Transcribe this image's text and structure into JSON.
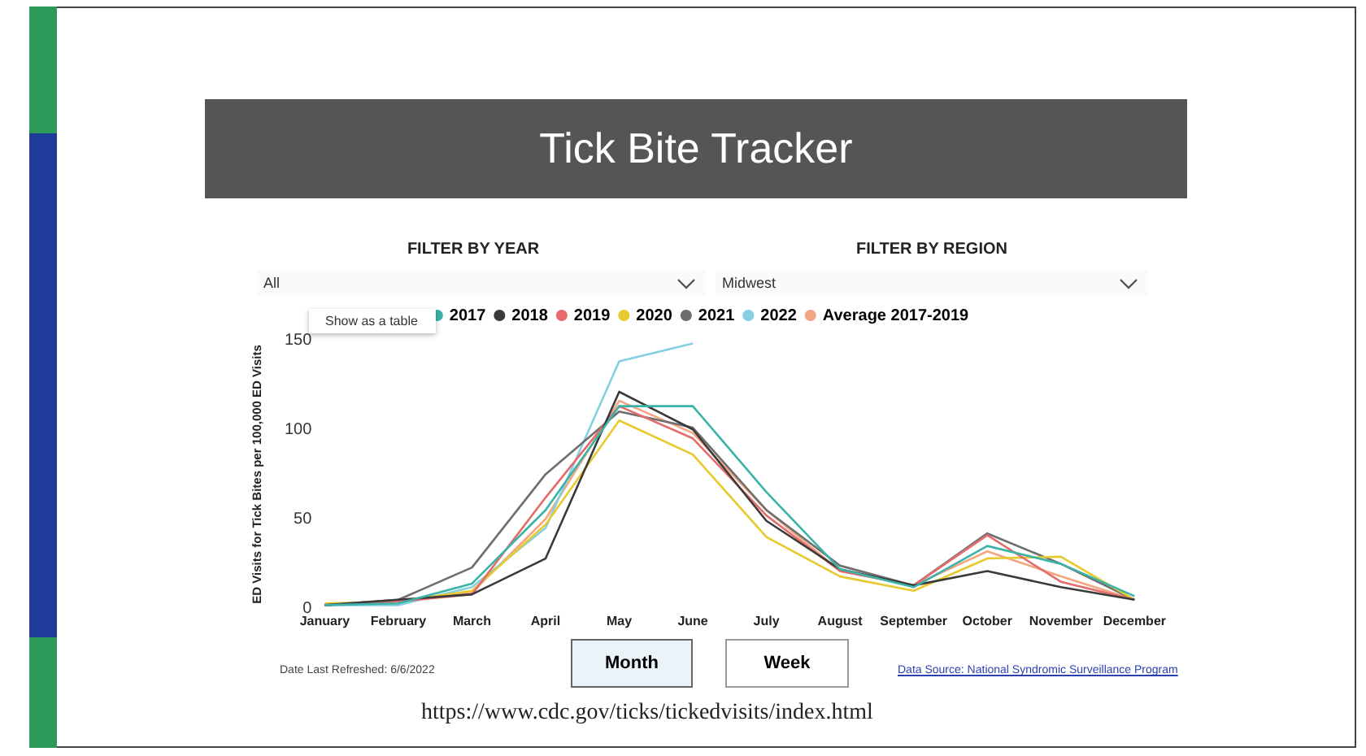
{
  "chart_data": {
    "type": "line",
    "title": "Tick Bite Tracker",
    "ylabel": "ED Visits for Tick Bites per 100,000 ED Visits",
    "categories": [
      "January",
      "February",
      "March",
      "April",
      "May",
      "June",
      "July",
      "August",
      "September",
      "October",
      "November",
      "December"
    ],
    "series": [
      {
        "name": "2017",
        "color": "#3bb3a8",
        "values": [
          2,
          3,
          14,
          55,
          113,
          113,
          65,
          22,
          12,
          35,
          25,
          7
        ]
      },
      {
        "name": "2018",
        "color": "#3a3a3a",
        "values": [
          2,
          5,
          8,
          28,
          121,
          100,
          49,
          22,
          13,
          21,
          12,
          5
        ]
      },
      {
        "name": "2019",
        "color": "#e66c6c",
        "values": [
          2,
          4,
          8,
          62,
          113,
          95,
          52,
          21,
          13,
          41,
          15,
          5
        ]
      },
      {
        "name": "2020",
        "color": "#e8c92e",
        "values": [
          3,
          4,
          10,
          47,
          105,
          86,
          40,
          18,
          10,
          28,
          29,
          5
        ]
      },
      {
        "name": "2021",
        "color": "#6e6e6e",
        "values": [
          2,
          5,
          23,
          75,
          110,
          101,
          55,
          24,
          13,
          42,
          25,
          5
        ]
      },
      {
        "name": "2022",
        "color": "#86cfe3",
        "values": [
          2,
          2,
          12,
          45,
          138,
          148,
          null,
          null,
          null,
          null,
          null,
          null
        ]
      },
      {
        "name": "Average 2017-2019",
        "color": "#f4a582",
        "values": [
          2,
          4,
          9,
          50,
          116,
          98,
          55,
          21,
          13,
          32,
          18,
          5
        ]
      }
    ],
    "ylim": [
      0,
      150
    ],
    "yticks": [
      0,
      50,
      100,
      150
    ],
    "grid": false,
    "legend": "top",
    "marker": "none",
    "line_style": "solid",
    "annotations": [
      "FILTER BY YEAR",
      "All",
      "FILTER BY REGION",
      "Midwest",
      "Show as a table",
      "Month",
      "Week",
      "Date Last Refreshed: 6/6/2022",
      "Data Source: National Syndromic Surveillance Program",
      "https://www.cdc.gov/ticks/tickedvisits/index.html"
    ]
  }
}
